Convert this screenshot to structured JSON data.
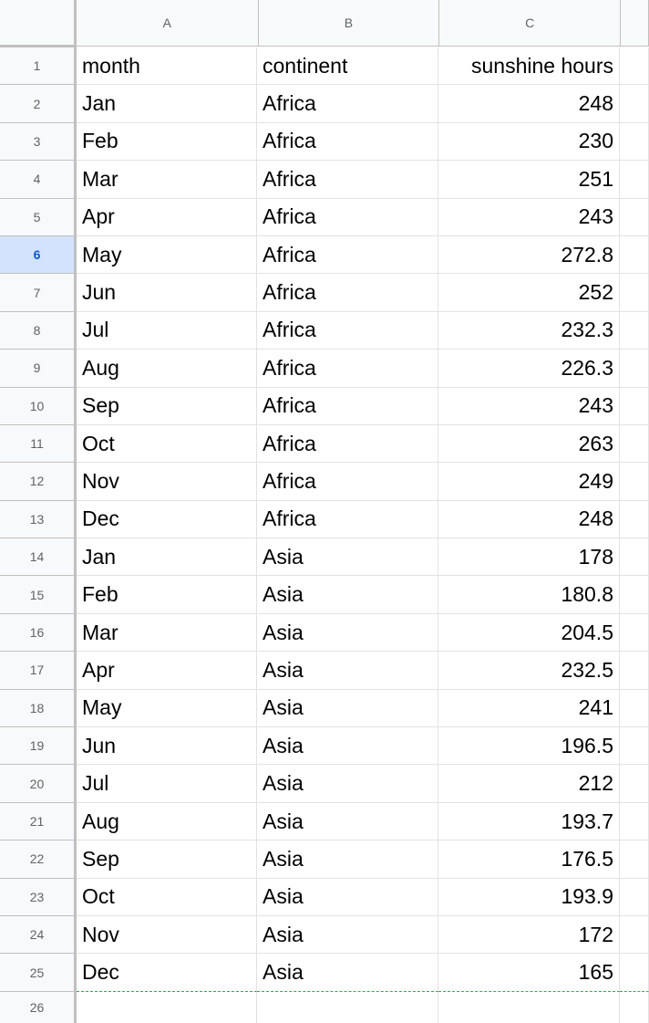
{
  "columns": [
    "A",
    "B",
    "C"
  ],
  "selected_row": 6,
  "rows": [
    {
      "num": "1",
      "a": "month",
      "b": "continent",
      "c": "sunshine hours"
    },
    {
      "num": "2",
      "a": "Jan",
      "b": "Africa",
      "c": "248"
    },
    {
      "num": "3",
      "a": "Feb",
      "b": "Africa",
      "c": "230"
    },
    {
      "num": "4",
      "a": "Mar",
      "b": "Africa",
      "c": "251"
    },
    {
      "num": "5",
      "a": "Apr",
      "b": "Africa",
      "c": "243"
    },
    {
      "num": "6",
      "a": "May",
      "b": "Africa",
      "c": "272.8"
    },
    {
      "num": "7",
      "a": "Jun",
      "b": "Africa",
      "c": "252"
    },
    {
      "num": "8",
      "a": "Jul",
      "b": "Africa",
      "c": "232.3"
    },
    {
      "num": "9",
      "a": "Aug",
      "b": "Africa",
      "c": "226.3"
    },
    {
      "num": "10",
      "a": "Sep",
      "b": "Africa",
      "c": "243"
    },
    {
      "num": "11",
      "a": "Oct",
      "b": "Africa",
      "c": "263"
    },
    {
      "num": "12",
      "a": "Nov",
      "b": "Africa",
      "c": "249"
    },
    {
      "num": "13",
      "a": "Dec",
      "b": "Africa",
      "c": "248"
    },
    {
      "num": "14",
      "a": "Jan",
      "b": "Asia",
      "c": "178"
    },
    {
      "num": "15",
      "a": "Feb",
      "b": "Asia",
      "c": "180.8"
    },
    {
      "num": "16",
      "a": "Mar",
      "b": "Asia",
      "c": "204.5"
    },
    {
      "num": "17",
      "a": "Apr",
      "b": "Asia",
      "c": "232.5"
    },
    {
      "num": "18",
      "a": "May",
      "b": "Asia",
      "c": "241"
    },
    {
      "num": "19",
      "a": "Jun",
      "b": "Asia",
      "c": "196.5"
    },
    {
      "num": "20",
      "a": "Jul",
      "b": "Asia",
      "c": "212"
    },
    {
      "num": "21",
      "a": "Aug",
      "b": "Asia",
      "c": "193.7"
    },
    {
      "num": "22",
      "a": "Sep",
      "b": "Asia",
      "c": "176.5"
    },
    {
      "num": "23",
      "a": "Oct",
      "b": "Asia",
      "c": "193.9"
    },
    {
      "num": "24",
      "a": "Nov",
      "b": "Asia",
      "c": "172"
    },
    {
      "num": "25",
      "a": "Dec",
      "b": "Asia",
      "c": "165"
    },
    {
      "num": "26",
      "a": "",
      "b": "",
      "c": ""
    }
  ]
}
